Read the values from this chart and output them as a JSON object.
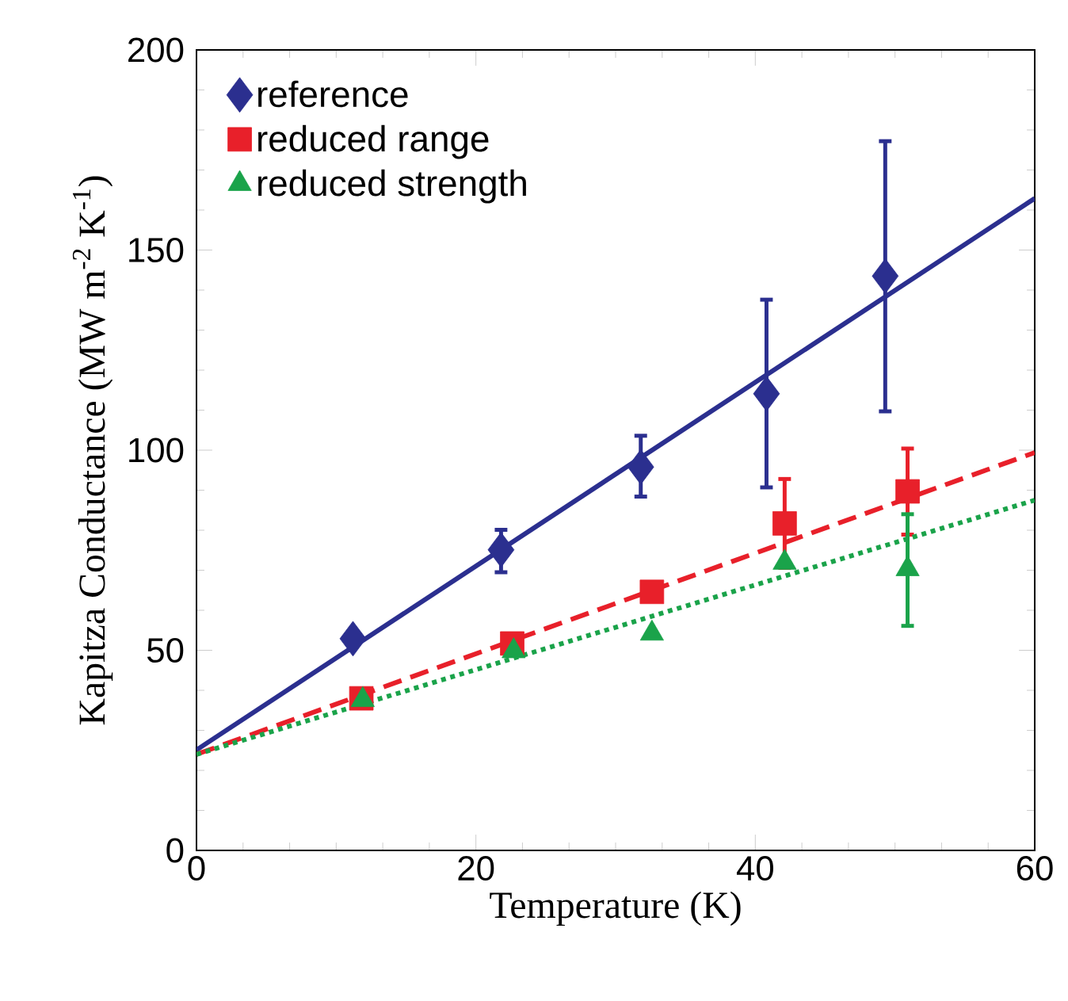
{
  "chart_data": {
    "type": "scatter",
    "xlabel": "Temperature (K)",
    "ylabel": "Kapitza Conductance (MW m$^{-2}$ K$^{-1}$)",
    "xlim": [
      0,
      60
    ],
    "xticks": [
      0,
      20,
      40,
      60
    ],
    "ylim": [
      0,
      200
    ],
    "yticks": [
      0,
      50,
      100,
      150,
      200
    ],
    "legend": "top left",
    "series": [
      {
        "name": "reference",
        "marker": "diamond",
        "color": "#2b2f8f",
        "x": [
          11.2,
          21.8,
          31.8,
          40.8,
          49.3
        ],
        "values": [
          52.9,
          75.1,
          95.8,
          114.1,
          143.5
        ],
        "errors": [
          null,
          [
            69.5,
            80.1
          ],
          [
            88.4,
            103.6
          ],
          [
            90.7,
            137.6
          ],
          [
            109.7,
            177.2
          ]
        ]
      },
      {
        "name": "reduced range",
        "marker": "square",
        "color": "#e8202a",
        "x": [
          11.8,
          22.6,
          32.6,
          42.1,
          50.9
        ],
        "values": [
          38.0,
          51.7,
          64.6,
          81.7,
          89.7
        ],
        "errors": [
          null,
          null,
          null,
          [
            70.6,
            92.8
          ],
          [
            78.9,
            100.4
          ]
        ]
      },
      {
        "name": "reduced strength",
        "marker": "triangle",
        "color": "#1aa34a",
        "x": [
          11.9,
          22.7,
          32.6,
          42.1,
          50.9
        ],
        "values": [
          37.6,
          49.8,
          54.2,
          71.9,
          70.3
        ],
        "errors": [
          null,
          null,
          null,
          null,
          [
            56.1,
            84.0
          ]
        ]
      },
      {
        "type": "line",
        "line_style": "solid",
        "color": "#2b2f8f",
        "x": [
          0,
          60
        ],
        "values": [
          25.1,
          162.9
        ]
      },
      {
        "type": "line",
        "line_style": "dashed",
        "color": "#e8202a",
        "x": [
          0,
          60
        ],
        "values": [
          24.0,
          99.4
        ]
      },
      {
        "type": "line",
        "line_style": "dotted",
        "color": "#1aa34a",
        "x": [
          0,
          60
        ],
        "values": [
          24.0,
          87.5
        ]
      }
    ]
  }
}
